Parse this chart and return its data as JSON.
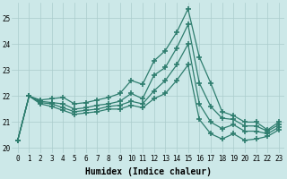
{
  "xlabel": "Humidex (Indice chaleur)",
  "ylabel": "",
  "background_color": "#cce8e8",
  "line_color": "#2e7d6e",
  "grid_color": "#aacccc",
  "xlim": [
    -0.5,
    23.5
  ],
  "ylim": [
    19.8,
    25.6
  ],
  "yticks": [
    20,
    21,
    22,
    23,
    24,
    25
  ],
  "xtick_labels": [
    "0",
    "1",
    "2",
    "3",
    "4",
    "5",
    "6",
    "7",
    "8",
    "9",
    "10",
    "11",
    "12",
    "13",
    "14",
    "15",
    "16",
    "17",
    "18",
    "19",
    "20",
    "21",
    "22",
    "23"
  ],
  "lines": [
    [
      20.3,
      22.0,
      21.85,
      21.9,
      21.95,
      21.7,
      21.75,
      21.85,
      21.95,
      22.1,
      22.6,
      22.45,
      23.35,
      23.75,
      24.45,
      25.35,
      23.5,
      22.5,
      21.4,
      21.25,
      21.0,
      21.0,
      20.7,
      21.0
    ],
    [
      20.3,
      22.0,
      21.8,
      21.75,
      21.7,
      21.5,
      21.55,
      21.65,
      21.7,
      21.8,
      22.1,
      21.9,
      22.8,
      23.1,
      23.85,
      24.75,
      22.5,
      21.6,
      21.15,
      21.1,
      20.85,
      20.85,
      20.65,
      20.9
    ],
    [
      20.3,
      22.0,
      21.75,
      21.7,
      21.55,
      21.4,
      21.45,
      21.5,
      21.6,
      21.65,
      21.8,
      21.7,
      22.2,
      22.6,
      23.2,
      24.0,
      21.7,
      21.0,
      20.75,
      20.9,
      20.65,
      20.65,
      20.55,
      20.8
    ],
    [
      20.3,
      22.0,
      21.7,
      21.6,
      21.45,
      21.3,
      21.35,
      21.4,
      21.5,
      21.5,
      21.65,
      21.55,
      21.9,
      22.1,
      22.6,
      23.2,
      21.1,
      20.55,
      20.35,
      20.55,
      20.3,
      20.35,
      20.45,
      20.7
    ]
  ],
  "marker": "+",
  "markersize": 4,
  "markeredgewidth": 1.2,
  "linewidth": 0.9,
  "label_fontsize": 7,
  "tick_fontsize": 5.5
}
